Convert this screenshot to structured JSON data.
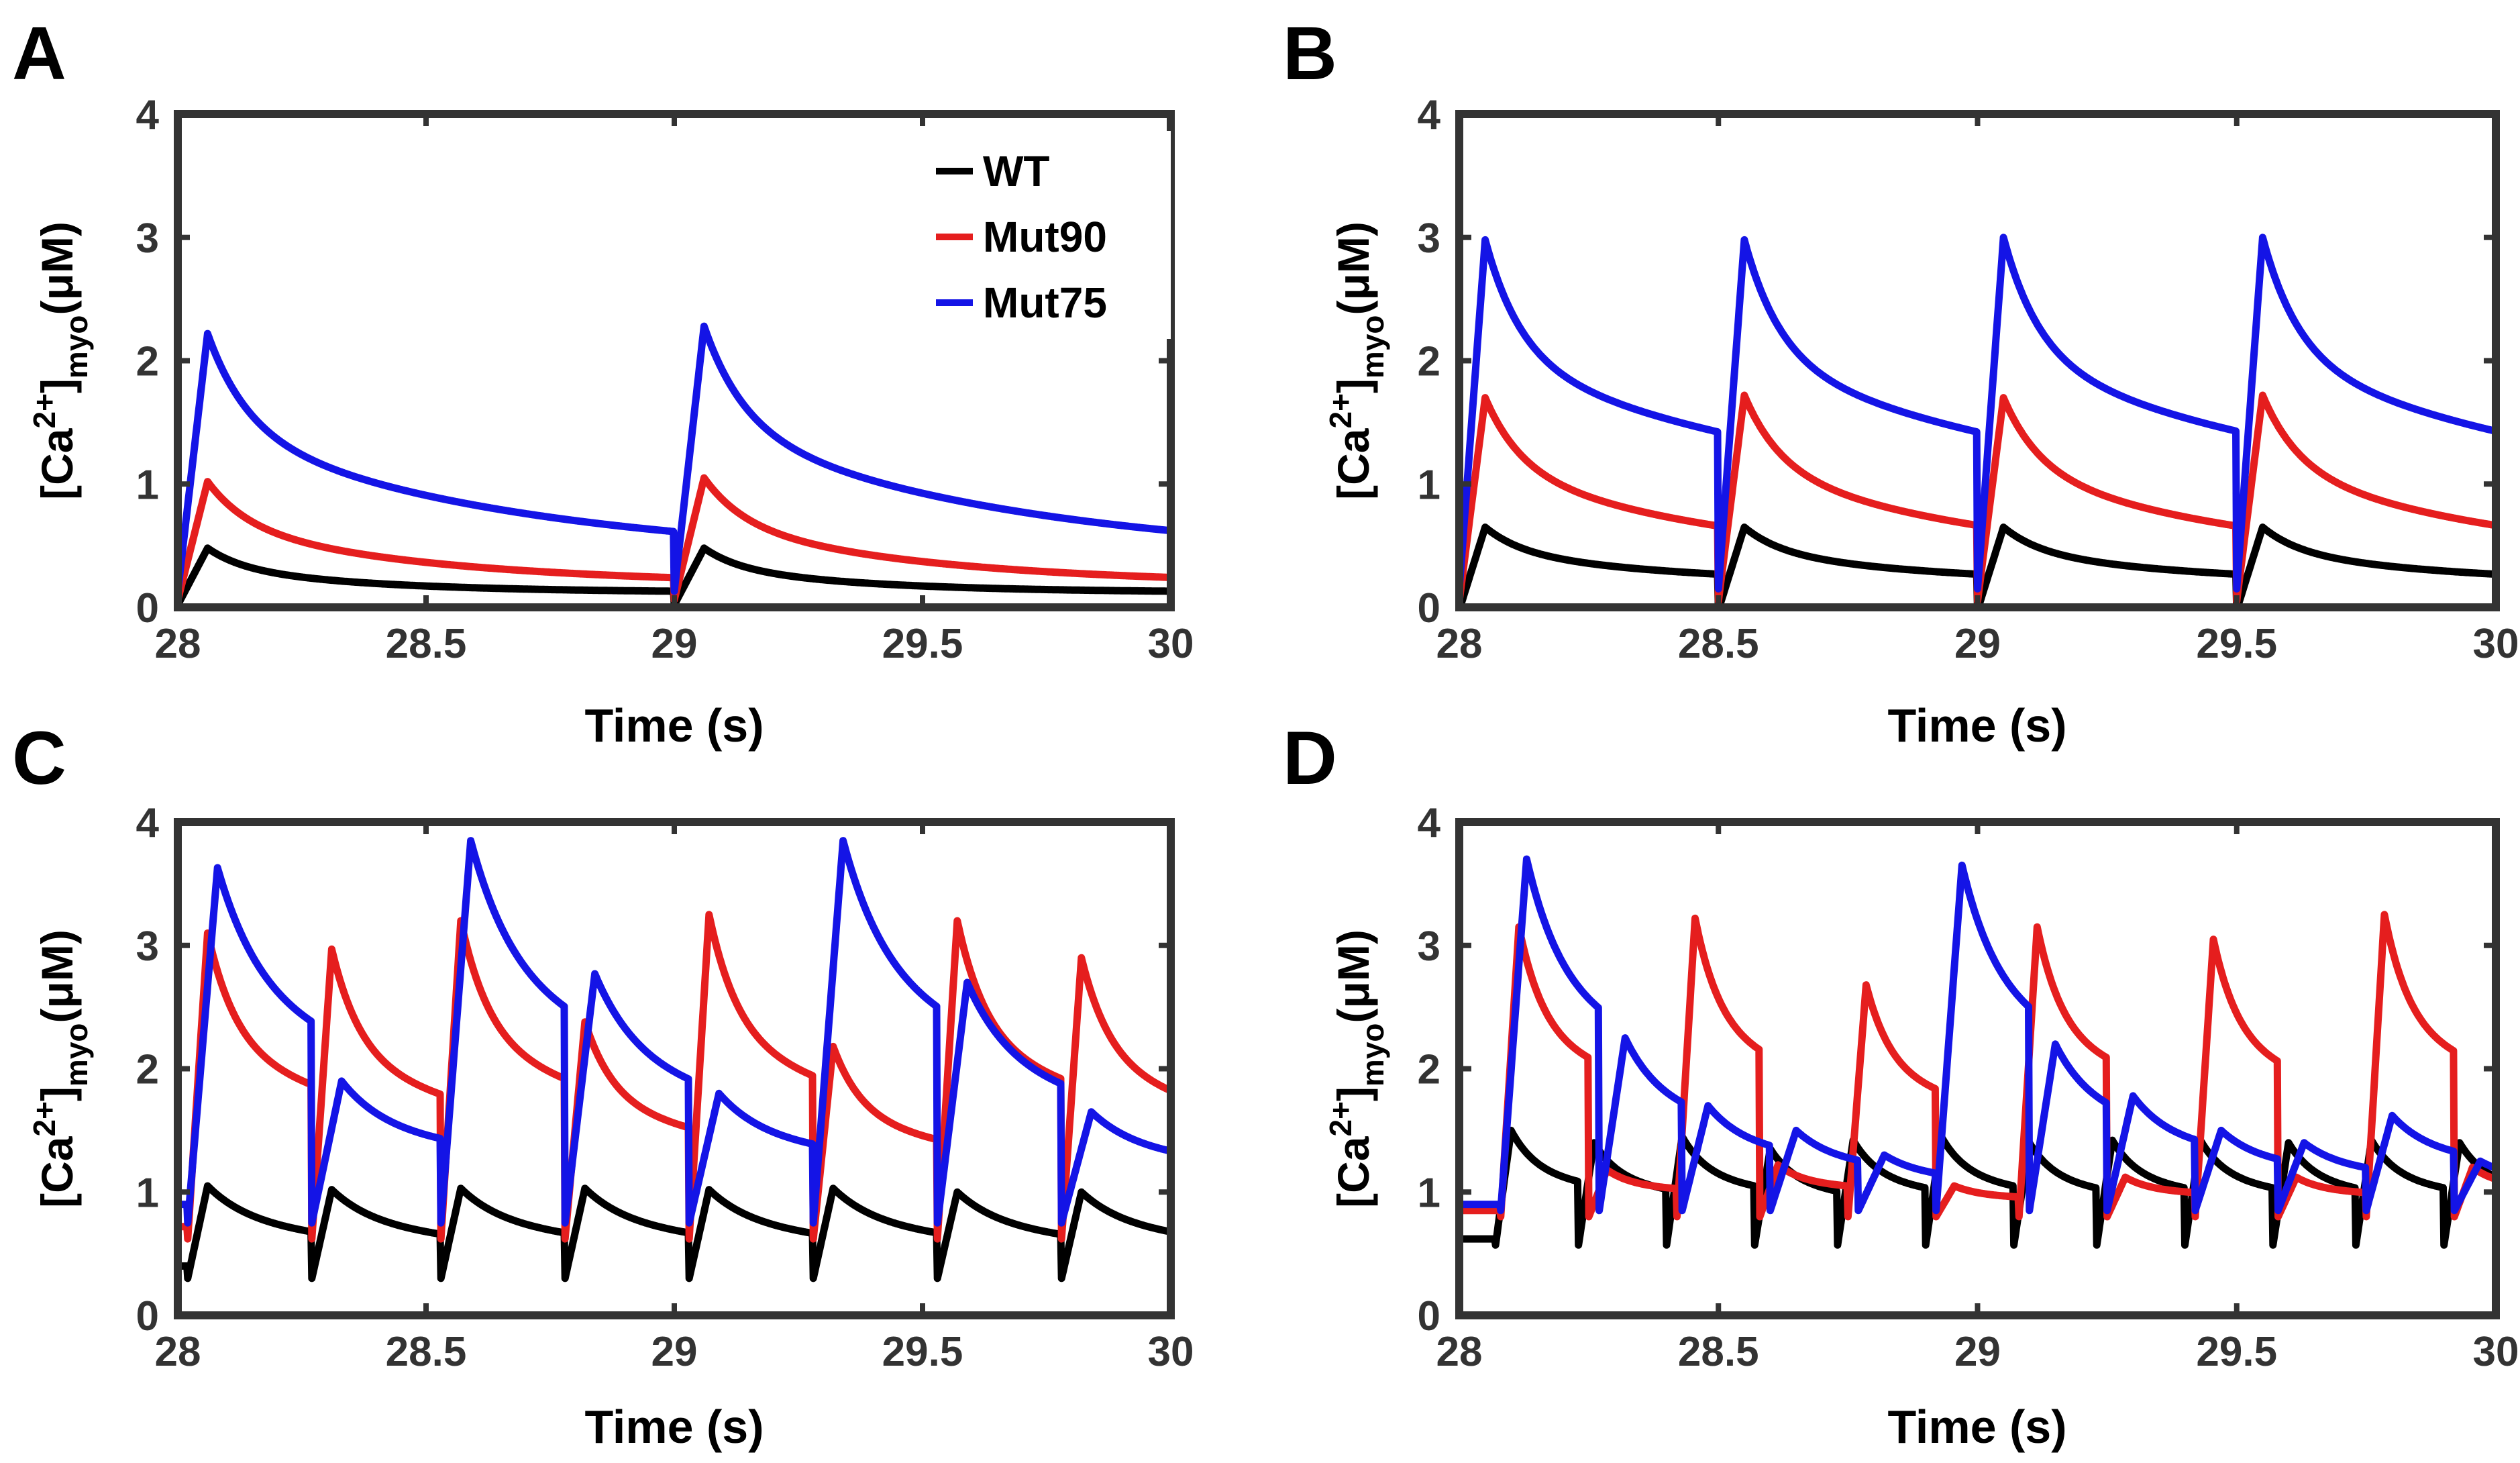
{
  "figure": {
    "legend": [
      {
        "label": "WT",
        "color": "#000000"
      },
      {
        "label": "Mut90",
        "color": "#e51e1e"
      },
      {
        "label": "Mut75",
        "color": "#1414e6"
      }
    ]
  },
  "chart_data": [
    {
      "panel_label": "A",
      "type": "line",
      "xlabel": "Time (s)",
      "ylabel_base": "[Ca",
      "ylabel_sup": "2+",
      "ylabel_close": "]",
      "ylabel_sub": "myo",
      "ylabel_unit": "(μM)",
      "xlim": [
        28,
        30
      ],
      "ylim": [
        0,
        4
      ],
      "xticks": [
        "28",
        "28.5",
        "29",
        "29.5",
        "30"
      ],
      "yticks": [
        "0",
        "1",
        "2",
        "3",
        "4"
      ],
      "legend_position": "top-right",
      "series": [
        {
          "name": "WT",
          "color": "#000000",
          "peaks": [
            [
              28.0,
              0.48
            ],
            [
              29.0,
              0.48
            ]
          ],
          "rise": 0.06,
          "peak_decay": 0.07,
          "tail": 0.32,
          "baseline": 0.12,
          "dip": 0.1
        },
        {
          "name": "Mut90",
          "color": "#e51e1e",
          "peaks": [
            [
              28.0,
              1.02
            ],
            [
              29.0,
              1.05
            ]
          ],
          "rise": 0.06,
          "peak_decay": 0.08,
          "tail": 0.45,
          "baseline": 0.18,
          "dip": 0.12
        },
        {
          "name": "Mut75",
          "color": "#1414e6",
          "peaks": [
            [
              28.0,
              2.22
            ],
            [
              29.0,
              2.28
            ]
          ],
          "rise": 0.06,
          "peak_decay": 0.08,
          "tail": 0.62,
          "baseline": 0.38,
          "dip": 0.25
        }
      ]
    },
    {
      "panel_label": "B",
      "type": "line",
      "xlabel": "Time (s)",
      "ylabel_base": "[Ca",
      "ylabel_sup": "2+",
      "ylabel_close": "]",
      "ylabel_sub": "myo",
      "ylabel_unit": "(μM)",
      "xlim": [
        28,
        30
      ],
      "ylim": [
        0,
        4
      ],
      "xticks": [
        "28",
        "28.5",
        "29",
        "29.5",
        "30"
      ],
      "yticks": [
        "0",
        "1",
        "2",
        "3",
        "4"
      ],
      "series": [
        {
          "name": "WT",
          "color": "#000000",
          "peaks": [
            [
              28.0,
              0.65
            ],
            [
              28.5,
              0.65
            ],
            [
              29.0,
              0.65
            ],
            [
              29.5,
              0.65
            ]
          ],
          "rise": 0.05,
          "peak_decay": 0.07,
          "tail": 0.4,
          "baseline": 0.18,
          "dip": 0.2
        },
        {
          "name": "Mut90",
          "color": "#e51e1e",
          "peaks": [
            [
              28.0,
              1.7
            ],
            [
              28.5,
              1.72
            ],
            [
              29.0,
              1.7
            ],
            [
              29.5,
              1.72
            ]
          ],
          "rise": 0.05,
          "peak_decay": 0.07,
          "tail": 0.55,
          "baseline": 0.3,
          "dip": 0.25
        },
        {
          "name": "Mut75",
          "color": "#1414e6",
          "peaks": [
            [
              28.0,
              2.98
            ],
            [
              28.5,
              2.98
            ],
            [
              29.0,
              3.0
            ],
            [
              29.5,
              3.0
            ]
          ],
          "rise": 0.05,
          "peak_decay": 0.07,
          "tail": 0.8,
          "baseline": 0.65,
          "dip": 0.5
        }
      ]
    },
    {
      "panel_label": "C",
      "type": "line",
      "xlabel": "Time (s)",
      "ylabel_base": "[Ca",
      "ylabel_sup": "2+",
      "ylabel_close": "]",
      "ylabel_sub": "myo",
      "ylabel_unit": "(μM)",
      "xlim": [
        28,
        30
      ],
      "ylim": [
        0,
        4
      ],
      "xticks": [
        "28",
        "28.5",
        "29",
        "29.5",
        "30"
      ],
      "yticks": [
        "0",
        "1",
        "2",
        "3",
        "4"
      ],
      "series": [
        {
          "name": "WT",
          "color": "#000000",
          "peaks": [
            [
              28.02,
              1.05
            ],
            [
              28.27,
              1.02
            ],
            [
              28.53,
              1.03
            ],
            [
              28.78,
              1.03
            ],
            [
              29.03,
              1.02
            ],
            [
              29.28,
              1.03
            ],
            [
              29.53,
              1.0
            ],
            [
              29.78,
              1.0
            ]
          ],
          "rise": 0.04,
          "peak_decay": 0.08,
          "tail": 0.55,
          "baseline": 0.4,
          "dip": 0.1
        },
        {
          "name": "Mut90",
          "color": "#e51e1e",
          "peaks": [
            [
              28.02,
              3.1
            ],
            [
              28.27,
              2.97
            ],
            [
              28.53,
              3.2
            ],
            [
              28.78,
              2.38
            ],
            [
              29.03,
              3.25
            ],
            [
              29.28,
              2.18
            ],
            [
              29.53,
              3.2
            ],
            [
              29.78,
              2.9
            ]
          ],
          "rise": 0.04,
          "peak_decay": 0.06,
          "tail": 1.0,
          "baseline": 0.72,
          "dip": 0.1
        },
        {
          "name": "Mut75",
          "color": "#1414e6",
          "peaks": [
            [
              28.02,
              3.63
            ],
            [
              28.27,
              1.9
            ],
            [
              28.53,
              3.85
            ],
            [
              28.78,
              2.77
            ],
            [
              29.03,
              1.8
            ],
            [
              29.28,
              3.85
            ],
            [
              29.53,
              2.7
            ],
            [
              29.78,
              1.65
            ]
          ],
          "rise": 0.06,
          "peak_decay": 0.09,
          "tail": 1.15,
          "baseline": 0.9,
          "dip": 0.15
        }
      ]
    },
    {
      "panel_label": "D",
      "type": "line",
      "xlabel": "Time (s)",
      "ylabel_base": "[Ca",
      "ylabel_sup": "2+",
      "ylabel_close": "]",
      "ylabel_sub": "myo",
      "ylabel_unit": "(μM)",
      "xlim": [
        28,
        30
      ],
      "ylim": [
        0,
        4
      ],
      "xticks": [
        "28",
        "28.5",
        "29",
        "29.5",
        "30"
      ],
      "yticks": [
        "0",
        "1",
        "2",
        "3",
        "4"
      ],
      "series": [
        {
          "name": "WT",
          "color": "#000000",
          "peaks": [
            [
              28.07,
              1.5
            ],
            [
              28.23,
              1.4
            ],
            [
              28.4,
              1.45
            ],
            [
              28.57,
              1.35
            ],
            [
              28.73,
              1.42
            ],
            [
              28.9,
              1.45
            ],
            [
              29.07,
              1.4
            ],
            [
              29.23,
              1.42
            ],
            [
              29.4,
              1.42
            ],
            [
              29.57,
              1.4
            ],
            [
              29.73,
              1.42
            ],
            [
              29.9,
              1.4
            ]
          ],
          "rise": 0.03,
          "peak_decay": 0.05,
          "tail": 0.85,
          "baseline": 0.62,
          "dip": 0.05
        },
        {
          "name": "Mut90",
          "color": "#e51e1e",
          "peaks": [
            [
              28.08,
              3.15
            ],
            [
              28.25,
              1.18
            ],
            [
              28.42,
              3.22
            ],
            [
              28.58,
              1.22
            ],
            [
              28.75,
              2.68
            ],
            [
              28.92,
              1.05
            ],
            [
              29.08,
              3.15
            ],
            [
              29.25,
              1.12
            ],
            [
              29.42,
              3.05
            ],
            [
              29.58,
              1.12
            ],
            [
              29.75,
              3.25
            ],
            [
              29.92,
              1.2
            ]
          ],
          "rise": 0.035,
          "peak_decay": 0.05,
          "tail": 1.05,
          "baseline": 0.85,
          "dip": 0.05
        },
        {
          "name": "Mut75",
          "color": "#1414e6",
          "peaks": [
            [
              28.08,
              3.7
            ],
            [
              28.27,
              2.25
            ],
            [
              28.43,
              1.7
            ],
            [
              28.6,
              1.5
            ],
            [
              28.77,
              1.3
            ],
            [
              28.92,
              3.65
            ],
            [
              29.1,
              2.2
            ],
            [
              29.25,
              1.78
            ],
            [
              29.42,
              1.5
            ],
            [
              29.58,
              1.4
            ],
            [
              29.75,
              1.62
            ],
            [
              29.92,
              1.25
            ]
          ],
          "rise": 0.05,
          "peak_decay": 0.07,
          "tail": 1.1,
          "baseline": 0.9,
          "dip": 0.05
        }
      ]
    }
  ]
}
